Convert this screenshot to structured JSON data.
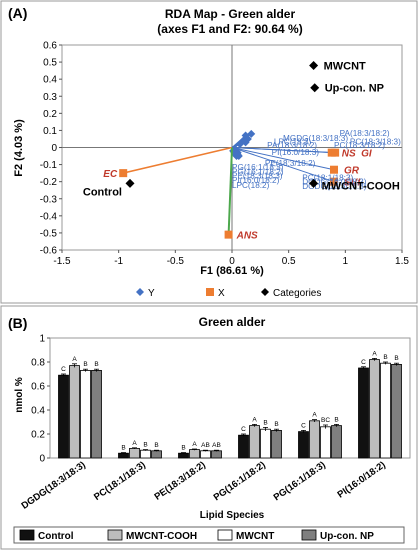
{
  "chart_data": [
    {
      "type": "scatter",
      "panel_label": "(A)",
      "title": "RDA Map - Green alder",
      "subtitle": "(axes F1 and F2: 90.64 %)",
      "xlabel": "F1 (86.61 %)",
      "ylabel": "F2 (4.03 %)",
      "xlim": [
        -1.5,
        1.5
      ],
      "ylim": [
        -0.6,
        0.6
      ],
      "x_ticks": [
        "-1.5",
        "-1",
        "-0.5",
        "0",
        "0.5",
        "1",
        "1.5"
      ],
      "y_ticks": [
        "-0.6",
        "-0.5",
        "-0.4",
        "-0.3",
        "-0.2",
        "-0.1",
        "0",
        "0.1",
        "0.2",
        "0.3",
        "0.4",
        "0.5",
        "0.6"
      ],
      "legend": [
        {
          "name": "Y",
          "color": "#4472C4",
          "marker": "diamond"
        },
        {
          "name": "X",
          "color": "#ED7D31",
          "marker": "square"
        },
        {
          "name": "Categories",
          "color": "#000000",
          "marker": "diamond"
        }
      ],
      "categories": [
        {
          "label": "MWCNT",
          "x": 0.72,
          "y": 0.48
        },
        {
          "label": "Up-con. NP",
          "x": 0.73,
          "y": 0.35
        },
        {
          "label": "Control",
          "x": -0.9,
          "y": -0.21
        },
        {
          "label": "MWCNT-COOH",
          "x": 0.72,
          "y": -0.21
        }
      ],
      "x_vectors": [
        {
          "label": "EC",
          "x": -0.96,
          "y": -0.15,
          "color": "#ED7D31",
          "label_color": "#C0392B"
        },
        {
          "label": "NS",
          "x": 0.88,
          "y": -0.03,
          "color": "#4472C4",
          "label_color": "#C0392B"
        },
        {
          "label": "GI",
          "x": 0.91,
          "y": -0.03,
          "color": "#4472C4",
          "label_color": "#C0392B"
        },
        {
          "label": "GR",
          "x": 0.9,
          "y": -0.13,
          "color": "#4472C4",
          "label_color": "#C0392B"
        },
        {
          "label": "SVI",
          "x": 0.9,
          "y": -0.2,
          "color": "#4472C4",
          "label_color": "#C0392B"
        },
        {
          "label": "ANS",
          "x": -0.03,
          "y": -0.51,
          "color": "#4CA84C",
          "label_color": "#C0392B"
        }
      ],
      "y_points": [
        {
          "label": "PA(18:3/18:2)",
          "x": 0.17,
          "y": 0.08
        },
        {
          "label": "MGDG(18:3/18:3)",
          "x": 0.12,
          "y": 0.07
        },
        {
          "label": "LPC(18:3)",
          "x": 0.1,
          "y": 0.04
        },
        {
          "label": "PC(18:3/18:3)",
          "x": 0.14,
          "y": 0.05
        },
        {
          "label": "PA(18:3/18:2)",
          "x": 0.07,
          "y": 0.02
        },
        {
          "label": "PC(18:3/18:2)",
          "x": 0.12,
          "y": 0.03
        },
        {
          "label": "PI(16:0/18:3)",
          "x": 0.05,
          "y": -0.03
        },
        {
          "label": "PE(18:3/18:2)",
          "x": 0.06,
          "y": -0.05
        },
        {
          "label": "PI(16:0/18:2)",
          "x": 0.03,
          "y": -0.01
        },
        {
          "label": "PG(16:1/18:2)",
          "x": 0.02,
          "y": -0.02
        },
        {
          "label": "PG(16:1/18:3)",
          "x": 0.04,
          "y": -0.03
        },
        {
          "label": "PE(18:3/18:3)",
          "x": 0.03,
          "y": -0.04
        },
        {
          "label": "LPC(18:2)",
          "x": 0.01,
          "y": -0.02
        },
        {
          "label": "PC(18:1/18:3)",
          "x": 0.02,
          "y": -0.03
        },
        {
          "label": "DGDG(16:0/18:3)",
          "x": 0.05,
          "y": -0.04
        },
        {
          "label": "DGDG(18:3/18:3)",
          "x": 0.04,
          "y": -0.05
        }
      ],
      "y_labels": [
        {
          "text": "PA(18:3/18:2)",
          "x": 0.95,
          "y": 0.085
        },
        {
          "text": "MGDG(18:3/18:3)",
          "x": 0.45,
          "y": 0.055
        },
        {
          "text": "PC(18:3/18:3)",
          "x": 1.04,
          "y": 0.035
        },
        {
          "text": "LPC(18:3)",
          "x": 0.37,
          "y": 0.035
        },
        {
          "text": "PC(18:3/18:2)",
          "x": 0.9,
          "y": 0.015
        },
        {
          "text": "PA(18:3/18:2)",
          "x": 0.31,
          "y": 0.015
        },
        {
          "text": "PI(16:0/18:3)",
          "x": 0.35,
          "y": -0.025
        },
        {
          "text": "PE(18:3/18:2)",
          "x": 0.29,
          "y": -0.09
        },
        {
          "text": "PG(16:1/18:3)",
          "x": 0.0,
          "y": -0.115
        },
        {
          "text": "PG(16:1/18:2)",
          "x": 0.0,
          "y": -0.14
        },
        {
          "text": "PE(18:3/18:3)",
          "x": 0.0,
          "y": -0.165
        },
        {
          "text": "PC(18:1/18:3)",
          "x": 0.62,
          "y": -0.175
        },
        {
          "text": "PI(16:0/18:2)",
          "x": 0.0,
          "y": -0.19
        },
        {
          "text": "DGDG(16:0/18:3)",
          "x": 0.62,
          "y": -0.2
        },
        {
          "text": "LPC(18:2)",
          "x": 0.0,
          "y": -0.22
        },
        {
          "text": "DGDG(18:3/18:3)",
          "x": 0.62,
          "y": -0.225
        }
      ]
    },
    {
      "type": "bar",
      "panel_label": "(B)",
      "title": "Green alder",
      "xlabel": "Lipid Species",
      "ylabel": "nmol %",
      "ylim": [
        0,
        1
      ],
      "y_ticks": [
        "0",
        "0.2",
        "0.4",
        "0.6",
        "0.8",
        "1"
      ],
      "categories": [
        "DGDG(18:3/18:3)",
        "PC(18:1/18:3)",
        "PE(18:3/18:2)",
        "PG(16:1/18:2)",
        "PG(16:1/18:3)",
        "PI(16:0/18:2)"
      ],
      "series": [
        {
          "name": "Control",
          "color": "#111111",
          "values": [
            0.69,
            0.04,
            0.04,
            0.19,
            0.22,
            0.75
          ],
          "errors": [
            0.01,
            0.005,
            0.005,
            0.01,
            0.01,
            0.01
          ],
          "letters": [
            "C",
            "B",
            "B",
            "C",
            "C",
            "C"
          ]
        },
        {
          "name": "MWCNT-COOH",
          "color": "#BDBDBD",
          "values": [
            0.77,
            0.08,
            0.07,
            0.27,
            0.31,
            0.82
          ],
          "errors": [
            0.015,
            0.005,
            0.005,
            0.01,
            0.01,
            0.01
          ],
          "letters": [
            "A",
            "A",
            "A",
            "A",
            "A",
            "A"
          ]
        },
        {
          "name": "MWCNT",
          "color": "#FFFFFF",
          "values": [
            0.73,
            0.065,
            0.06,
            0.24,
            0.26,
            0.79
          ],
          "errors": [
            0.01,
            0.005,
            0.005,
            0.015,
            0.015,
            0.01
          ],
          "letters": [
            "B",
            "B",
            "AB",
            "B",
            "BC",
            "B"
          ]
        },
        {
          "name": "Up-con. NP",
          "color": "#7F7F7F",
          "values": [
            0.73,
            0.06,
            0.06,
            0.23,
            0.27,
            0.78
          ],
          "errors": [
            0.01,
            0.005,
            0.005,
            0.01,
            0.01,
            0.01
          ],
          "letters": [
            "B",
            "B",
            "AB",
            "B",
            "B",
            "B"
          ]
        }
      ]
    }
  ]
}
